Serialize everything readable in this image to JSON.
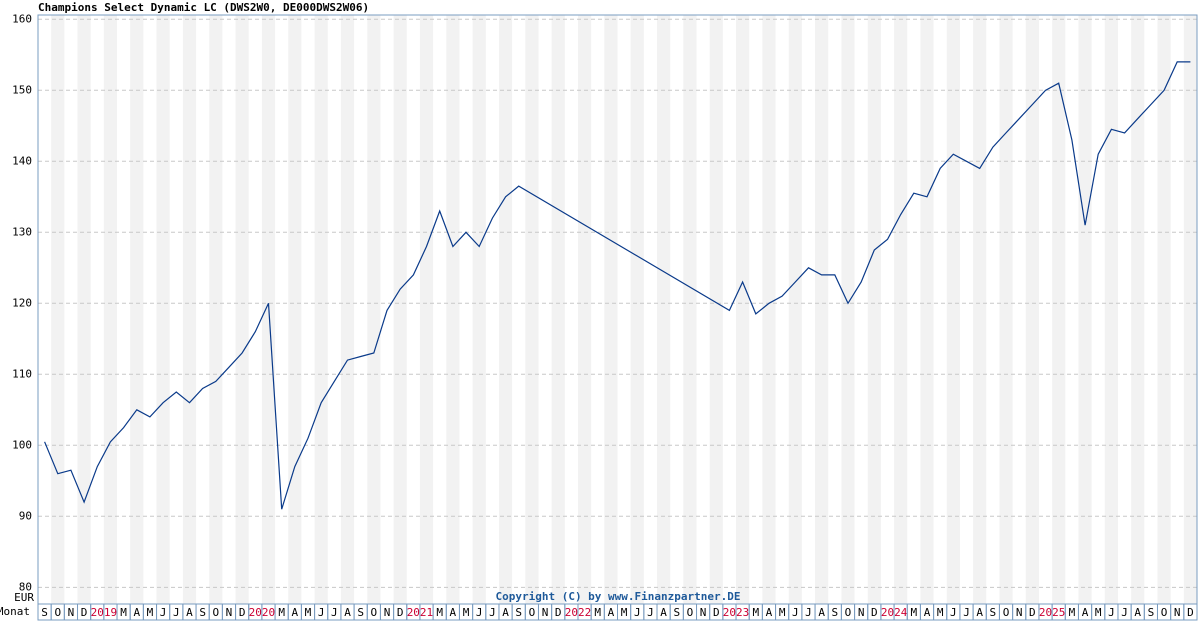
{
  "chart_data": {
    "type": "line",
    "title": "Champions Select Dynamic LC (DWS2W0, DE000DWS2W06)",
    "y_unit_label": "EUR",
    "x_axis_label": "Monat",
    "copyright": "Copyright (C) by www.Finanzpartner.DE",
    "xlim": [
      "2018-09",
      "2025-12"
    ],
    "categories": [
      "S",
      "O",
      "N",
      "D",
      "2019",
      null,
      "M",
      "A",
      "M",
      "J",
      "J",
      "A",
      "S",
      "O",
      "N",
      "D",
      "2020",
      null,
      "M",
      "A",
      "M",
      "J",
      "J",
      "A",
      "S",
      "O",
      "N",
      "D",
      "2021",
      null,
      "M",
      "A",
      "M",
      "J",
      "J",
      "A",
      "S",
      "O",
      "N",
      "D",
      "2022",
      null,
      "M",
      "A",
      "M",
      "J",
      "J",
      "A",
      "S",
      "O",
      "N",
      "D",
      "2023",
      null,
      "M",
      "A",
      "M",
      "J",
      "J",
      "A",
      "S",
      "O",
      "N",
      "D",
      "2024",
      null,
      "M",
      "A",
      "M",
      "J",
      "J",
      "A",
      "S",
      "O",
      "N",
      "D",
      "2025",
      null,
      "M",
      "A",
      "M",
      "J",
      "J",
      "A",
      "S",
      "O",
      "N",
      "D"
    ],
    "ylim": [
      79.2,
      160.6
    ],
    "yticks": [
      80,
      90,
      100,
      110,
      120,
      130,
      140,
      150,
      160
    ],
    "grid": true,
    "year_color": "#cc0033",
    "series": [
      {
        "name": "Champions Select Dynamic LC",
        "color": "#0a3a8a",
        "x": [
          "2018-09",
          "2018-10",
          "2018-11",
          "2018-12",
          "2019-01",
          "2019-02",
          "2019-03",
          "2019-04",
          "2019-05",
          "2019-06",
          "2019-07",
          "2019-08",
          "2019-09",
          "2019-10",
          "2019-11",
          "2019-12",
          "2020-01",
          "2020-02",
          "2020-03",
          "2020-04",
          "2020-05",
          "2020-06",
          "2020-07",
          "2020-08",
          "2020-09",
          "2020-10",
          "2020-11",
          "2020-12",
          "2021-01",
          "2021-02",
          "2021-03",
          "2021-04",
          "2021-05",
          "2021-06",
          "2021-07",
          "2021-08",
          "2021-09",
          "2023-01",
          "2023-02",
          "2023-03",
          "2023-04",
          "2023-05",
          "2023-06",
          "2023-07",
          "2023-08",
          "2023-09",
          "2023-10",
          "2023-11",
          "2023-12",
          "2024-01",
          "2024-02",
          "2024-03",
          "2024-04",
          "2024-05",
          "2024-06",
          "2024-07",
          "2024-08",
          "2024-09",
          "2024-10",
          "2024-11",
          "2024-12",
          "2025-01",
          "2025-02",
          "2025-03",
          "2025-04",
          "2025-05",
          "2025-06",
          "2025-07",
          "2025-08",
          "2025-09",
          "2025-10",
          "2025-11",
          "2025-12"
        ],
        "values": [
          100.5,
          96,
          96.5,
          92,
          97,
          100.5,
          102.5,
          105,
          104,
          106,
          107.5,
          106,
          108,
          109,
          111,
          113,
          116,
          120,
          91,
          97,
          101,
          106,
          109,
          112,
          112.5,
          113,
          119,
          122,
          124,
          128,
          133,
          128,
          130,
          128,
          132,
          135,
          136.5,
          119,
          123,
          118.5,
          120,
          121,
          123,
          125,
          124,
          124,
          120,
          123,
          127.5,
          129,
          132.5,
          135.5,
          135,
          139,
          141,
          140,
          139,
          142,
          144,
          146,
          148,
          150,
          151,
          143,
          131,
          141,
          144.5,
          144,
          146,
          148,
          150,
          154,
          154
        ]
      }
    ]
  }
}
